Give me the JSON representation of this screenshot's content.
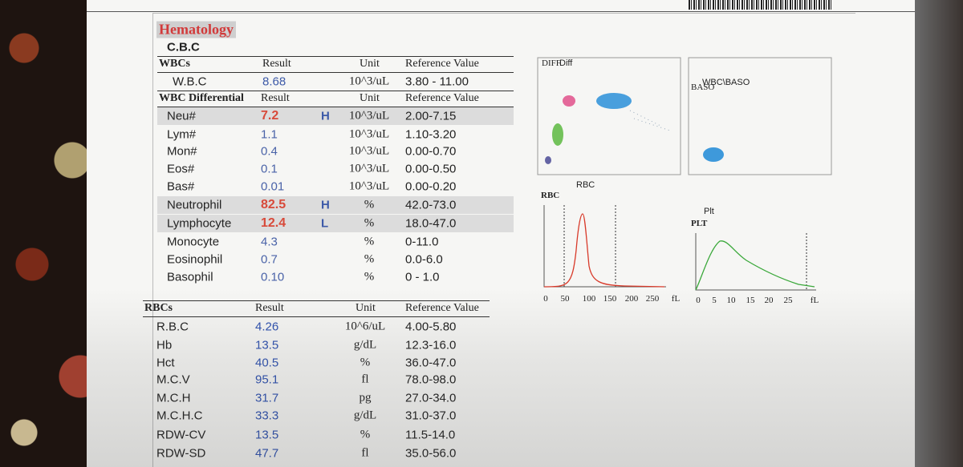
{
  "header": {
    "title": "Hematology",
    "subtitle": "C.B.C"
  },
  "sections": [
    {
      "header": {
        "label": "WBCs",
        "result": "Result",
        "unit": "Unit",
        "reference": "Reference Value"
      },
      "rows": [
        {
          "name": "W.B.C",
          "result": "8.68",
          "unit": "10^3/uL",
          "reference": "3.80 - 11.00"
        }
      ]
    },
    {
      "header": {
        "label": "WBC Differential",
        "result": "Result",
        "unit": "Unit",
        "reference": "Reference Value"
      },
      "rows": [
        {
          "name": "Neu#",
          "result": "7.2",
          "flag": "H",
          "unit": "10^3/uL",
          "reference": "2.00-7.15"
        },
        {
          "name": "Lym#",
          "result": "1.1",
          "unit": "10^3/uL",
          "reference": "1.10-3.20"
        },
        {
          "name": "Mon#",
          "result": "0.4",
          "unit": "10^3/uL",
          "reference": "0.00-0.70"
        },
        {
          "name": "Eos#",
          "result": "0.1",
          "unit": "10^3/uL",
          "reference": "0.00-0.50"
        },
        {
          "name": "Bas#",
          "result": "0.01",
          "unit": "10^3/uL",
          "reference": "0.00-0.20"
        },
        {
          "name": "Neutrophil",
          "result": "82.5",
          "flag": "H",
          "unit": "%",
          "reference": "42.0-73.0"
        },
        {
          "name": "Lymphocyte",
          "result": "12.4",
          "flag": "L",
          "unit": "%",
          "reference": "18.0-47.0"
        },
        {
          "name": "Monocyte",
          "result": "4.3",
          "unit": "%",
          "reference": "0-11.0"
        },
        {
          "name": "Eosinophil",
          "result": "0.7",
          "unit": "%",
          "reference": "0.0-6.0"
        },
        {
          "name": "Basophil",
          "result": "0.10",
          "unit": "%",
          "reference": "0 - 1.0"
        }
      ]
    },
    {
      "header": {
        "label": "RBCs",
        "result": "Result",
        "unit": "Unit",
        "reference": "Reference Value"
      },
      "rows": [
        {
          "name": "R.B.C",
          "result": "4.26",
          "unit": "10^6/uL",
          "reference": "4.00-5.80"
        },
        {
          "name": "Hb",
          "result": "13.5",
          "unit": "g/dL",
          "reference": "12.3-16.0"
        },
        {
          "name": "Hct",
          "result": "40.5",
          "unit": "%",
          "reference": "36.0-47.0"
        },
        {
          "name": "M.C.V",
          "result": "95.1",
          "unit": "fl",
          "reference": "78.0-98.0"
        },
        {
          "name": "M.C.H",
          "result": "31.7",
          "unit": "pg",
          "reference": "27.0-34.0"
        },
        {
          "name": "M.C.H.C",
          "result": "33.3",
          "unit": "g/dL",
          "reference": "31.0-37.0"
        },
        {
          "name": "RDW-CV",
          "result": "13.5",
          "unit": "%",
          "reference": "11.5-14.0"
        },
        {
          "name": "RDW-SD",
          "result": "47.7",
          "unit": "fl",
          "reference": "35.0-56.0"
        }
      ]
    }
  ],
  "plots": {
    "diff": {
      "label_small": "DIFF",
      "label": "Diff"
    },
    "baso": {
      "label": "WBC\\BASO",
      "label_small": "BASO"
    },
    "rbc": {
      "title": "RBC",
      "label": "RBC",
      "axis": [
        "0",
        "50",
        "100",
        "150",
        "200",
        "250",
        "fL"
      ]
    },
    "plt": {
      "title": "Plt",
      "label": "PLT",
      "axis": [
        "0",
        "5",
        "10",
        "15",
        "20",
        "25",
        "fL"
      ]
    }
  }
}
